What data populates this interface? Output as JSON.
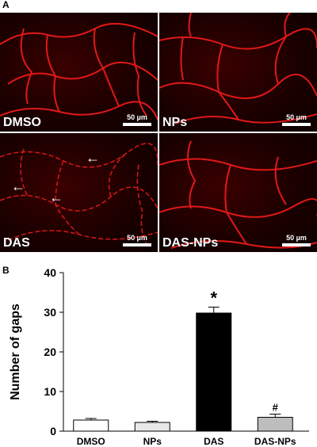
{
  "figure": {
    "panel_a_label": "A",
    "panel_b_label": "B",
    "micrographs": [
      {
        "condition": "DMSO",
        "scale_bar": "50 µm"
      },
      {
        "condition": "NPs",
        "scale_bar": "50 µm"
      },
      {
        "condition": "DAS",
        "scale_bar": "50 µm"
      },
      {
        "condition": "DAS-NPs",
        "scale_bar": "50 µm"
      }
    ],
    "stain_color": "#e01010"
  },
  "chart_data": {
    "type": "bar",
    "categories": [
      "DMSO",
      "NPs",
      "DAS",
      "DAS-NPs"
    ],
    "values": [
      2.8,
      2.2,
      29.8,
      3.5
    ],
    "errors": [
      0.4,
      0.3,
      1.5,
      0.8
    ],
    "bar_colors": [
      "#ffffff",
      "#e8e8e8",
      "#000000",
      "#bdbdbd"
    ],
    "annotations": [
      "",
      "",
      "*",
      "#"
    ],
    "ylabel": "Number of gaps",
    "xlabel": "",
    "ylim": [
      0,
      40
    ],
    "yticks": [
      0,
      10,
      20,
      30,
      40
    ],
    "grid": false
  }
}
